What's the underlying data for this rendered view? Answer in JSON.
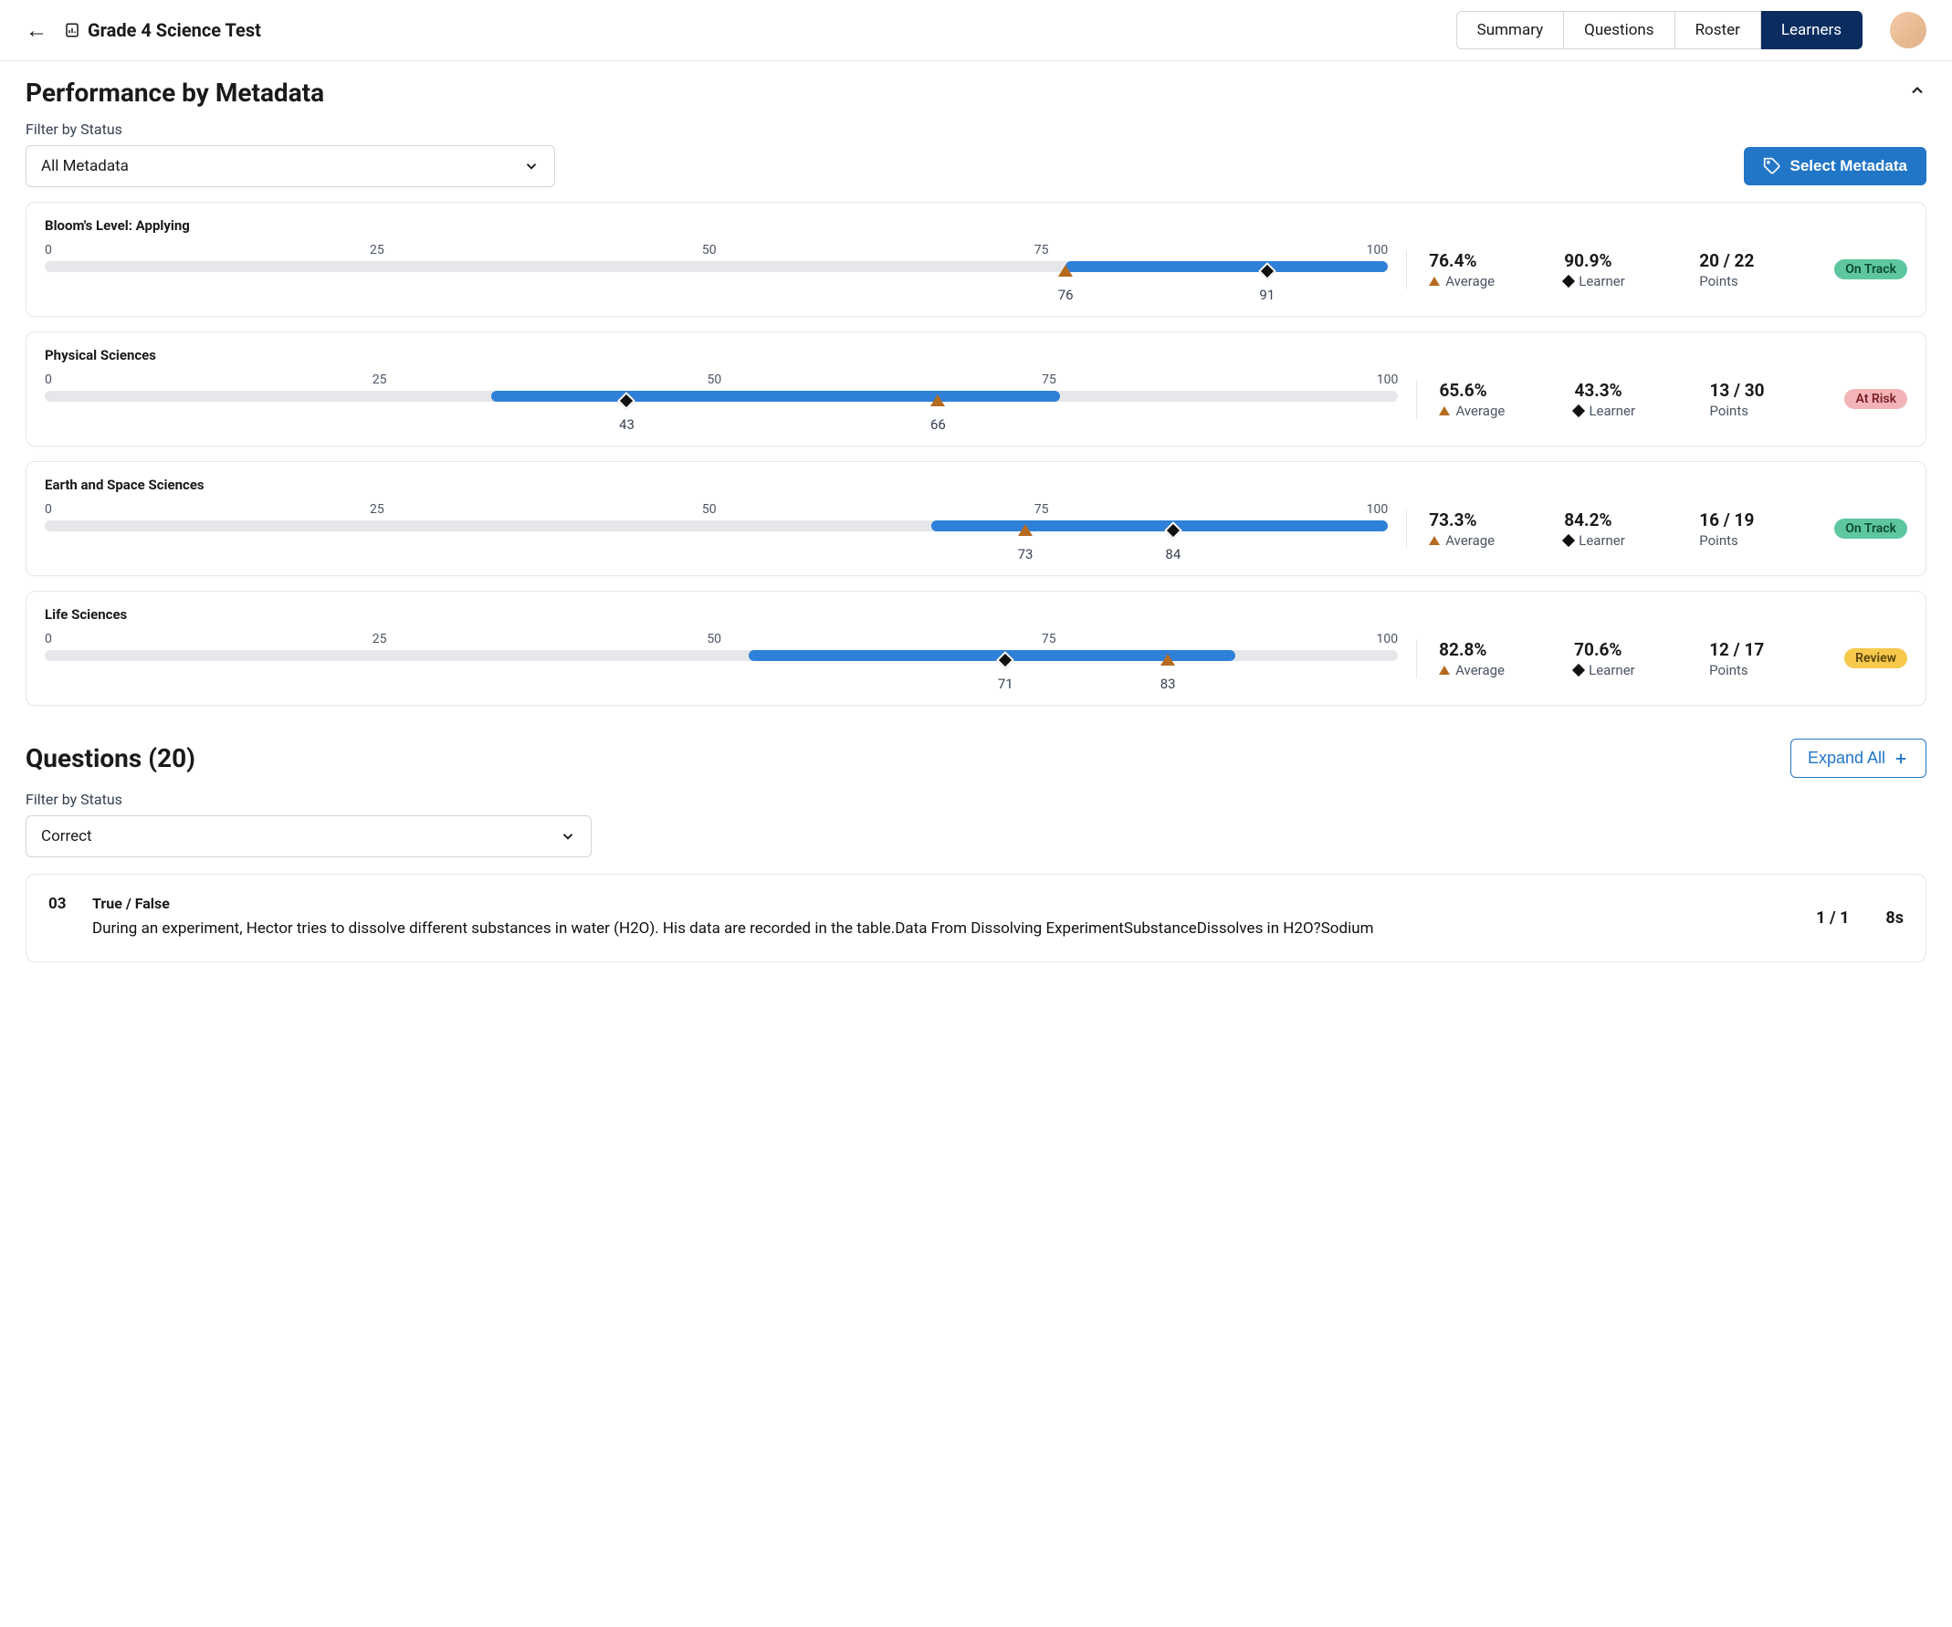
{
  "header": {
    "title": "Grade 4 Science Test",
    "tabs": [
      "Summary",
      "Questions",
      "Roster",
      "Learners"
    ],
    "activeTab": "Learners"
  },
  "metadata": {
    "sectionTitle": "Performance by Metadata",
    "filterLabel": "Filter by Status",
    "filterValue": "All Metadata",
    "selectButton": "Select Metadata",
    "axisTicks": [
      "0",
      "25",
      "50",
      "75",
      "100"
    ],
    "trackBg": "#e5e7eb",
    "fillColor": "#2f80d8",
    "avgColor": "#b46a1f",
    "learnerColor": "#111111",
    "statusColors": {
      "On Track": {
        "bg": "#5ec7a0",
        "fg": "#0c4a33"
      },
      "At Risk": {
        "bg": "#f3b4b8",
        "fg": "#7a1f24"
      },
      "Review": {
        "bg": "#f6c94d",
        "fg": "#5b4407"
      }
    },
    "cards": [
      {
        "title": "Bloom's Level: Applying",
        "fillStart": 76,
        "fillEnd": 100,
        "avg": 76,
        "learner": 91,
        "avgPct": "76.4%",
        "learnerPct": "90.9%",
        "points": "20 / 22",
        "status": "On Track"
      },
      {
        "title": "Physical Sciences",
        "fillStart": 33,
        "fillEnd": 75,
        "avg": 66,
        "learner": 43,
        "avgPct": "65.6%",
        "learnerPct": "43.3%",
        "points": "13 / 30",
        "status": "At Risk"
      },
      {
        "title": "Earth and Space Sciences",
        "fillStart": 66,
        "fillEnd": 100,
        "avg": 73,
        "learner": 84,
        "avgPct": "73.3%",
        "learnerPct": "84.2%",
        "points": "16 / 19",
        "status": "On Track"
      },
      {
        "title": "Life Sciences",
        "fillStart": 52,
        "fillEnd": 88,
        "avg": 83,
        "learner": 71,
        "avgPct": "82.8%",
        "learnerPct": "70.6%",
        "points": "12 / 17",
        "status": "Review"
      }
    ],
    "avgLabel": "Average",
    "learnerLabel": "Learner",
    "pointsLabel": "Points"
  },
  "questions": {
    "title": "Questions (20)",
    "expandAll": "Expand All",
    "filterLabel": "Filter by Status",
    "filterValue": "Correct",
    "items": [
      {
        "num": "03",
        "type": "True / False",
        "text": "During an experiment, Hector tries to dissolve different substances in water (H2O). His data are recorded in the table.Data From Dissolving ExperimentSubstanceDissolves in H2O?Sodium",
        "points": "1 / 1",
        "time": "8s"
      }
    ]
  }
}
